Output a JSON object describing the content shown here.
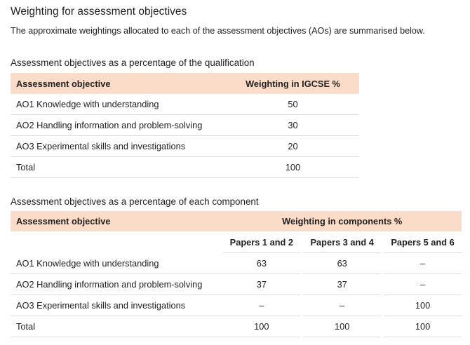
{
  "heading": "Weighting for assessment objectives",
  "intro": "The approximate weightings allocated to each of the assessment objectives (AOs) are summarised below.",
  "table1": {
    "caption": "Assessment objectives as a percentage of the qualification",
    "headers": [
      "Assessment objective",
      "Weighting in IGCSE %"
    ],
    "rows": [
      [
        "AO1 Knowledge with understanding",
        "50"
      ],
      [
        "AO2 Handling information and problem-solving",
        "30"
      ],
      [
        "AO3 Experimental skills and investigations",
        "20"
      ],
      [
        "Total",
        "100"
      ]
    ]
  },
  "table2": {
    "caption": "Assessment objectives as a percentage of each component",
    "headers": [
      "Assessment objective",
      "Weighting in components %"
    ],
    "subheaders": [
      "Papers 1 and 2",
      "Papers 3 and 4",
      "Papers 5 and 6"
    ],
    "rows": [
      [
        "AO1 Knowledge with understanding",
        "63",
        "63",
        "–"
      ],
      [
        "AO2 Handling information and problem-solving",
        "37",
        "37",
        "–"
      ],
      [
        "AO3 Experimental skills and investigations",
        "–",
        "–",
        "100"
      ],
      [
        "Total",
        "100",
        "100",
        "100"
      ]
    ]
  }
}
